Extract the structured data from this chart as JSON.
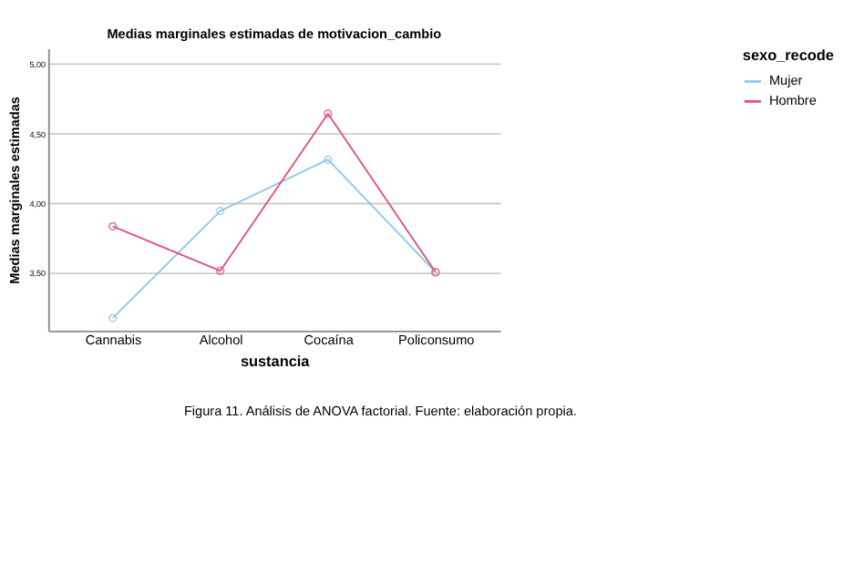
{
  "chart_data": {
    "type": "line",
    "title": "Medias marginales estimadas de motivacion_cambio",
    "xlabel": "sustancia",
    "ylabel": "Medias marginales estimadas",
    "legend_title": "sexo_recode",
    "categories": [
      "Cannabis",
      "Alcohol",
      "Cocaína",
      "Policonsumo"
    ],
    "series": [
      {
        "name": "Mujer",
        "color": "#8ec6ef",
        "values": [
          3.17,
          3.94,
          4.31,
          3.5
        ]
      },
      {
        "name": "Hombre",
        "color": "#e0507a",
        "values": [
          3.83,
          3.51,
          4.64,
          3.5
        ]
      }
    ],
    "ylim": [
      3.08,
      5.11
    ],
    "yticks": [
      {
        "value": 3.5,
        "label": "3,50"
      },
      {
        "value": 4,
        "label": "4,00"
      },
      {
        "value": 4.5,
        "label": "4,50"
      },
      {
        "value": 5,
        "label": "5,00"
      }
    ],
    "grid": "y",
    "legend": "top right",
    "marker": "circle",
    "line_style": "solid",
    "annotations": [
      "Figura 11. Análisis de ANOVA factorial. Fuente: elaboración propia."
    ]
  }
}
